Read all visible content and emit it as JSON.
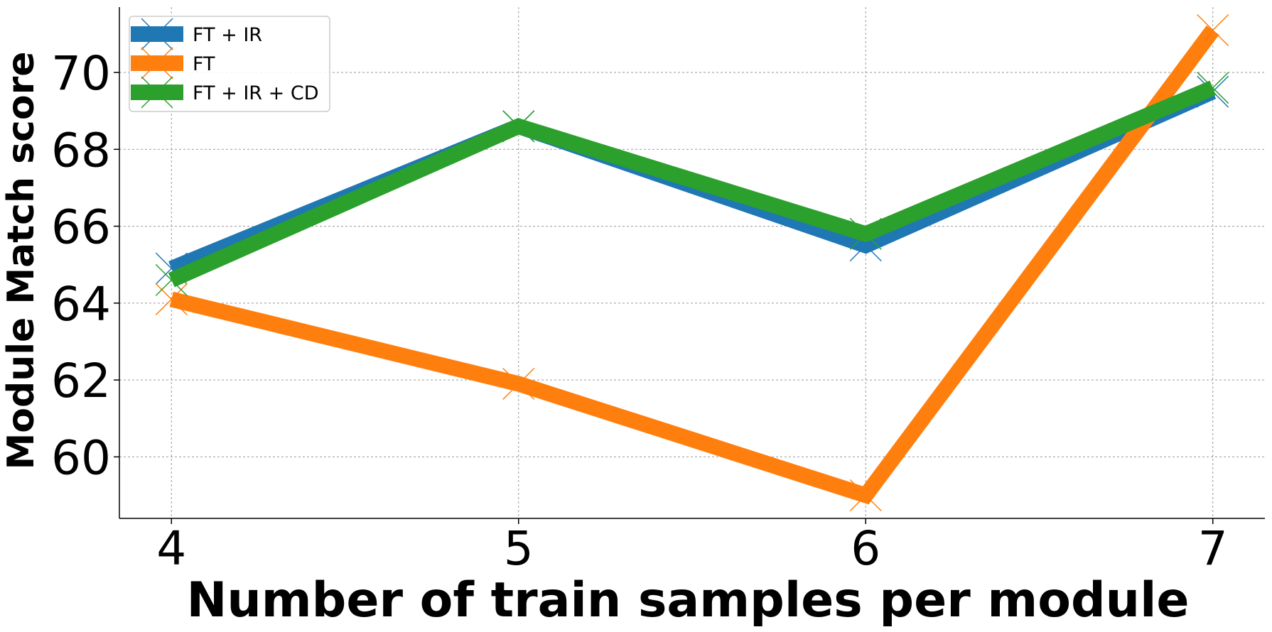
{
  "chart_data": {
    "type": "line",
    "xlabel": "Number of train samples per module",
    "ylabel": "Module Match score",
    "x": [
      4,
      5,
      6,
      7
    ],
    "xlim": [
      3.85,
      7.15
    ],
    "ylim": [
      58.4,
      71.7
    ],
    "xticks": [
      "4",
      "5",
      "6",
      "7"
    ],
    "yticks": [
      "60",
      "62",
      "64",
      "66",
      "68",
      "70"
    ],
    "ytick_values": [
      60,
      62,
      64,
      66,
      68,
      70
    ],
    "grid": true,
    "legend_position": "upper-left",
    "marker": "x",
    "series": [
      {
        "name": "FT + IR",
        "color": "#1f77b4",
        "values": [
          64.9,
          68.6,
          65.5,
          69.5
        ]
      },
      {
        "name": "FT",
        "color": "#ff7f0e",
        "values": [
          64.1,
          61.9,
          59.0,
          71.1
        ]
      },
      {
        "name": "FT + IR + CD",
        "color": "#2ca02c",
        "values": [
          64.6,
          68.6,
          65.8,
          69.6
        ]
      }
    ]
  }
}
